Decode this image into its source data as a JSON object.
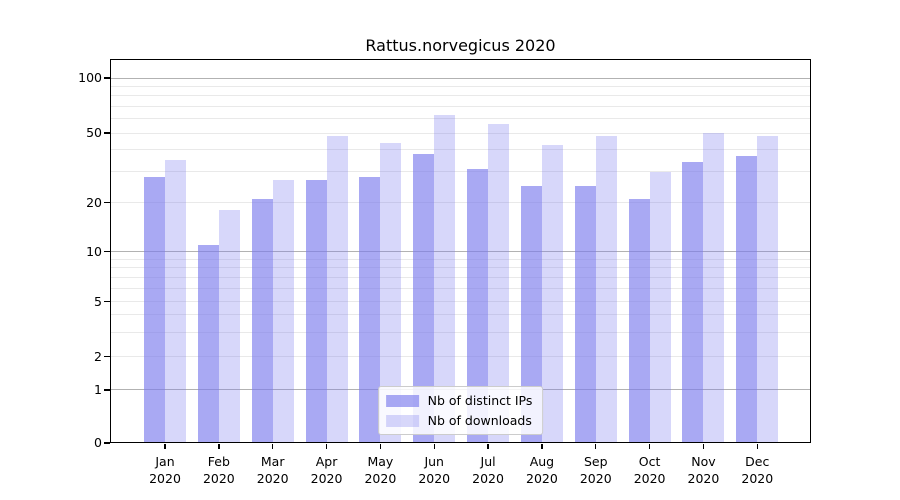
{
  "chart_data": {
    "type": "bar",
    "title": "Rattus.norvegicus 2020",
    "categories": [
      "Jan",
      "Feb",
      "Mar",
      "Apr",
      "May",
      "Jun",
      "Jul",
      "Aug",
      "Sep",
      "Oct",
      "Nov",
      "Dec"
    ],
    "category_year": "2020",
    "series": [
      {
        "name": "Nb of distinct IPs",
        "color": "rgba(123,123,237,0.65)",
        "values": [
          28,
          11,
          21,
          27,
          28,
          38,
          31,
          25,
          25,
          21,
          34,
          37
        ]
      },
      {
        "name": "Nb of downloads",
        "color": "rgba(123,123,237,0.30)",
        "values": [
          35,
          18,
          27,
          48,
          44,
          63,
          56,
          43,
          48,
          30,
          50,
          48
        ]
      }
    ],
    "yscale": "log-like (linear 0 to 1, logarithmic above 1)",
    "yticks": [
      0,
      1,
      2,
      5,
      10,
      20,
      50,
      100
    ],
    "ylim": [
      0,
      127
    ],
    "gridlines": {
      "major": [
        1,
        10,
        100
      ],
      "minor": [
        2,
        3,
        4,
        5,
        6,
        7,
        8,
        9,
        20,
        30,
        40,
        50,
        60,
        70,
        80,
        90
      ]
    },
    "grid": true,
    "legend_position": "lower center"
  },
  "colors": {
    "bar_distinct_ips_rendered": "#a9a9f1",
    "bar_downloads_rendered": "#d8d8fa",
    "grid_major": "#b2b2b2",
    "grid_minor": "#e9e9e9",
    "axis": "#000000",
    "legend_border": "#cccccc",
    "background": "#ffffff"
  }
}
